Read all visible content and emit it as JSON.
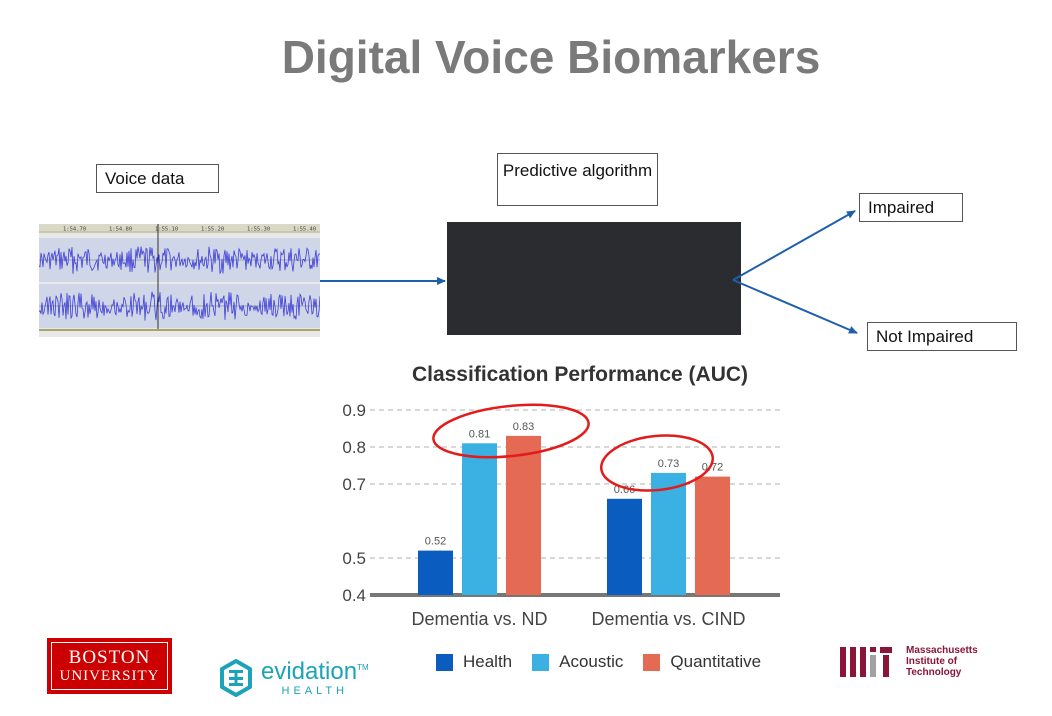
{
  "slide": {
    "title": "Digital Voice Biomarkers"
  },
  "diagram": {
    "voice_label": "Voice data",
    "predictive_label": "Predictive algorithm",
    "impaired_label": "Impaired",
    "not_impaired_label": "Not Impaired",
    "waveform_ticks": [
      "1:54.70",
      "1:54.80",
      "1:55.10",
      "1:55.20",
      "1:55.30",
      "1:55.40"
    ]
  },
  "chart_data": {
    "type": "bar",
    "title": "Classification Performance (AUC)",
    "categories": [
      "Dementia vs. ND",
      "Dementia vs. CIND"
    ],
    "series": [
      {
        "name": "Health",
        "values": [
          0.52,
          0.66
        ],
        "color": "#0b5cbf"
      },
      {
        "name": "Acoustic",
        "values": [
          0.81,
          0.73
        ],
        "color": "#3bb1e3"
      },
      {
        "name": "Quantitative",
        "values": [
          0.83,
          0.72
        ],
        "color": "#e46a54"
      }
    ],
    "y_ticks": [
      "0.4",
      "0.5",
      "0.7",
      "0.8",
      "0.9"
    ],
    "ylim": [
      0.4,
      0.9
    ],
    "grid": true,
    "legend_position": "bottom",
    "highlight_color": "#e31b1b"
  },
  "logos": {
    "bu_line1": "BOSTON",
    "bu_line2": "UNIVERSITY",
    "evidation_main": "evidation",
    "evidation_tm": "TM",
    "evidation_sub": "HEALTH",
    "mit_lines": [
      "Massachusetts",
      "Institute of",
      "Technology"
    ]
  },
  "colors": {
    "title": "#7a7a7a",
    "arrow": "#1f5fae",
    "bu_red": "#cc0000",
    "evidation_teal": "#1ba3b8",
    "mit_red": "#8a1538"
  }
}
